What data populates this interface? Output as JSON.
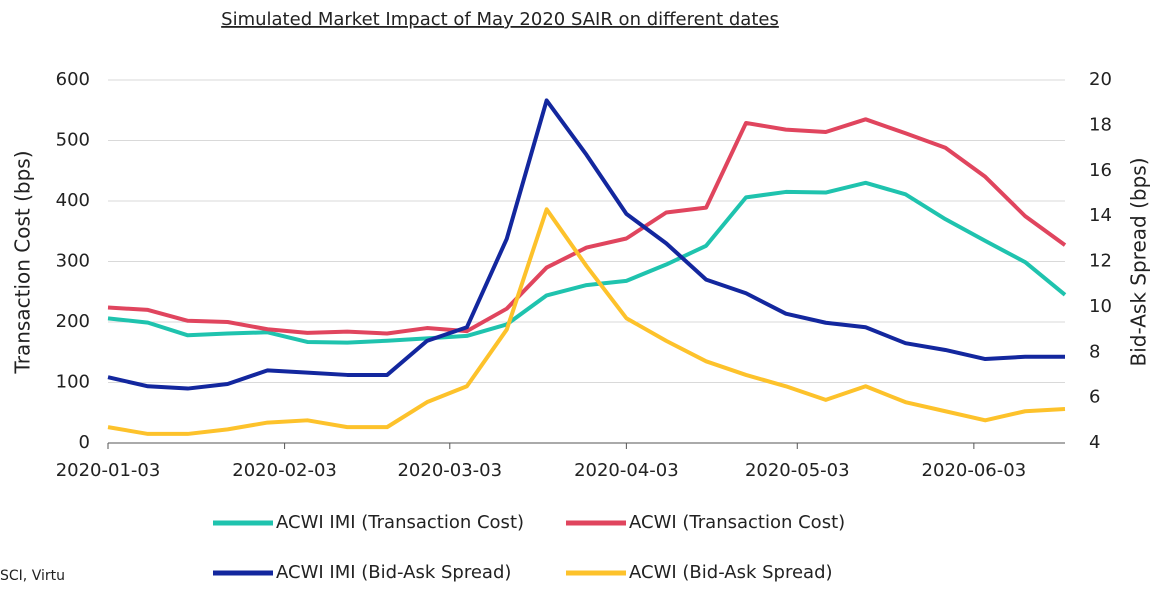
{
  "chart_data": {
    "type": "line",
    "title": "Simulated Market Impact of May 2020 SAIR on different dates",
    "y_label": "Transaction Cost (bps)",
    "y2_label": "Bid-Ask Spread (bps)",
    "source": "SCI, Virtu",
    "x": [
      "2020-01-03",
      "2020-01-10",
      "2020-01-17",
      "2020-01-24",
      "2020-01-31",
      "2020-02-07",
      "2020-02-14",
      "2020-02-21",
      "2020-02-28",
      "2020-03-06",
      "2020-03-13",
      "2020-03-20",
      "2020-03-27",
      "2020-04-03",
      "2020-04-10",
      "2020-04-17",
      "2020-04-24",
      "2020-05-01",
      "2020-05-08",
      "2020-05-15",
      "2020-05-22",
      "2020-05-29",
      "2020-06-05",
      "2020-06-12",
      "2020-06-19"
    ],
    "xlim": [
      "2020-01-03",
      "2020-06-19"
    ],
    "xticks": [
      "2020-01-03",
      "2020-02-03",
      "2020-03-03",
      "2020-04-03",
      "2020-05-03",
      "2020-06-03"
    ],
    "ylim": [
      0,
      600
    ],
    "yticks": [
      0,
      100,
      200,
      300,
      400,
      500,
      600
    ],
    "y2lim": [
      4,
      20
    ],
    "y2ticks": [
      4,
      6,
      8,
      10,
      12,
      14,
      16,
      18,
      20
    ],
    "grid": true,
    "series": [
      {
        "name": "ACWI IMI (Transaction Cost)",
        "color": "#1fc3ae",
        "values": [
          206,
          199,
          178,
          181,
          183,
          167,
          166,
          169,
          173,
          177,
          196,
          244,
          261,
          268,
          295,
          326,
          406,
          415,
          414,
          430,
          411,
          370,
          334,
          299,
          245
        ]
      },
      {
        "name": "ACWI (Transaction Cost)",
        "color": "#e0455e",
        "values": [
          224,
          220,
          202,
          200,
          188,
          182,
          184,
          181,
          190,
          185,
          222,
          290,
          323,
          338,
          381,
          389,
          529,
          518,
          514,
          535,
          512,
          488,
          440,
          375,
          327
        ]
      },
      {
        "name": "ACWI IMI (Bid-Ask Spread)",
        "color": "#13279e",
        "axis": "y2",
        "values": [
          6.9,
          6.5,
          6.4,
          6.6,
          7.2,
          7.1,
          7.0,
          7.0,
          8.5,
          9.1,
          13.0,
          19.1,
          16.7,
          14.1,
          12.8,
          11.2,
          10.6,
          9.7,
          9.3,
          9.1,
          8.4,
          8.1,
          7.7,
          7.8,
          7.8
        ]
      },
      {
        "name": "ACWI (Bid-Ask Spread)",
        "color": "#fdc22b",
        "axis": "y2",
        "values": [
          4.7,
          4.4,
          4.4,
          4.6,
          4.9,
          5.0,
          4.7,
          4.7,
          5.8,
          6.5,
          9.0,
          14.3,
          11.8,
          9.5,
          8.5,
          7.6,
          7.0,
          6.5,
          5.9,
          6.5,
          5.8,
          5.4,
          5.0,
          5.4,
          5.5
        ]
      }
    ]
  }
}
